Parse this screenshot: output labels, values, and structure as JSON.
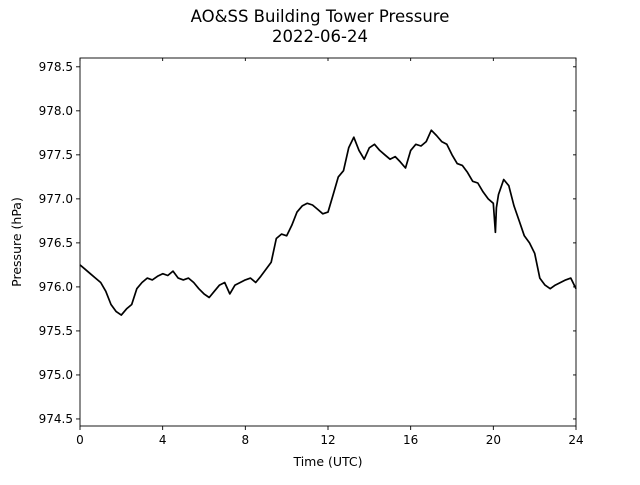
{
  "chart_data": {
    "type": "line",
    "title": "AO&SS Building Tower Pressure",
    "subtitle": "2022-06-24",
    "xlabel": "Time (UTC)",
    "ylabel": "Pressure (hPa)",
    "xlim": [
      0,
      24
    ],
    "ylim": [
      974.42,
      978.6
    ],
    "xticks": [
      0,
      4,
      8,
      12,
      16,
      20,
      24
    ],
    "yticks": [
      974.5,
      975.0,
      975.5,
      976.0,
      976.5,
      977.0,
      977.5,
      978.0,
      978.5
    ],
    "ytick_labels": [
      "974.5",
      "975.0",
      "975.5",
      "976.0",
      "976.5",
      "977.0",
      "977.5",
      "978.0",
      "978.5"
    ],
    "grid": false,
    "line_color": "#000000",
    "series": [
      {
        "x": [
          0,
          0.25,
          0.5,
          0.75,
          1.0,
          1.25,
          1.5,
          1.75,
          2.0,
          2.25,
          2.5,
          2.75,
          3.0,
          3.25,
          3.5,
          3.75,
          4.0,
          4.25,
          4.5,
          4.75,
          5.0,
          5.25,
          5.5,
          5.75,
          6.0,
          6.25,
          6.5,
          6.75,
          7.0,
          7.25,
          7.5,
          7.75,
          8.0,
          8.25,
          8.5,
          8.75,
          9.0,
          9.25,
          9.5,
          9.75,
          10.0,
          10.25,
          10.5,
          10.75,
          11.0,
          11.25,
          11.5,
          11.75,
          12.0,
          12.25,
          12.5,
          12.75,
          13.0,
          13.25,
          13.5,
          13.75,
          14.0,
          14.25,
          14.5,
          14.75,
          15.0,
          15.25,
          15.5,
          15.75,
          16.0,
          16.25,
          16.5,
          16.75,
          17.0,
          17.25,
          17.5,
          17.75,
          18.0,
          18.25,
          18.5,
          18.75,
          19.0,
          19.25,
          19.5,
          19.75,
          20.0,
          20.1,
          20.15,
          20.25,
          20.5,
          20.75,
          21.0,
          21.25,
          21.5,
          21.75,
          22.0,
          22.25,
          22.5,
          22.75,
          23.0,
          23.25,
          23.5,
          23.75,
          24.0
        ],
        "y": [
          976.25,
          976.2,
          976.15,
          976.1,
          976.05,
          975.95,
          975.8,
          975.72,
          975.68,
          975.75,
          975.8,
          975.98,
          976.05,
          976.1,
          976.08,
          976.12,
          976.15,
          976.13,
          976.18,
          976.1,
          976.08,
          976.1,
          976.05,
          975.98,
          975.92,
          975.88,
          975.95,
          976.02,
          976.05,
          975.92,
          976.02,
          976.05,
          976.08,
          976.1,
          976.05,
          976.12,
          976.2,
          976.28,
          976.55,
          976.6,
          976.58,
          976.7,
          976.85,
          976.92,
          976.95,
          976.93,
          976.88,
          976.83,
          976.85,
          977.05,
          977.25,
          977.32,
          977.58,
          977.7,
          977.55,
          977.45,
          977.58,
          977.62,
          977.55,
          977.5,
          977.45,
          977.48,
          977.42,
          977.35,
          977.55,
          977.62,
          977.6,
          977.65,
          977.78,
          977.72,
          977.65,
          977.62,
          977.5,
          977.4,
          977.38,
          977.3,
          977.2,
          977.18,
          977.08,
          977.0,
          976.95,
          976.62,
          976.9,
          977.05,
          977.22,
          977.15,
          976.92,
          976.75,
          976.58,
          976.5,
          976.38,
          976.1,
          976.02,
          975.98,
          976.02,
          976.05,
          976.08,
          976.1,
          975.98
        ]
      }
    ]
  }
}
